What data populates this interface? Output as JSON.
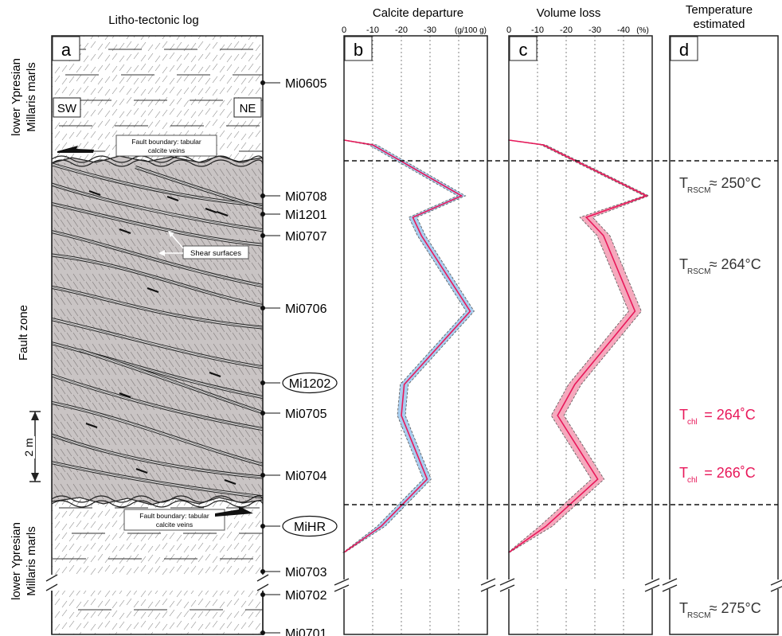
{
  "headers": {
    "log": "Litho-tectonic log",
    "calcite": "Calcite departure",
    "volume": "Volume loss",
    "temperature_line1": "Temperature",
    "temperature_line2": "estimated"
  },
  "panel_letters": [
    "a",
    "b",
    "c",
    "d"
  ],
  "log": {
    "orientation_left": "SW",
    "orientation_right": "NE",
    "unit_upper_line1": "lower Ypresian",
    "unit_upper_line2": "Millaris marls",
    "unit_lower_line1": "lower Ypresian",
    "unit_lower_line2": "Millaris marls",
    "fault_zone_label": "Fault zone",
    "scale_label": "2 m",
    "fault_boundary_top_line1": "Fault boundary: tabular",
    "fault_boundary_top_line2": "calcite veins",
    "fault_boundary_bottom_line1": "Fault boundary: tabular",
    "fault_boundary_bottom_line2": "calcite veins",
    "shear_surfaces_label": "Shear surfaces"
  },
  "samples": [
    {
      "id": "Mi0605",
      "circled": false
    },
    {
      "id": "Mi0708",
      "circled": false
    },
    {
      "id": "Mi1201",
      "circled": false
    },
    {
      "id": "Mi0707",
      "circled": false
    },
    {
      "id": "Mi0706",
      "circled": false
    },
    {
      "id": "Mi1202",
      "circled": true
    },
    {
      "id": "Mi0705",
      "circled": false
    },
    {
      "id": "Mi0704",
      "circled": false
    },
    {
      "id": "MiHR",
      "circled": true
    },
    {
      "id": "Mi0703",
      "circled": false
    },
    {
      "id": "Mi0702",
      "circled": false
    },
    {
      "id": "Mi0701",
      "circled": false
    }
  ],
  "calcite_axis": {
    "ticks": [
      "0",
      "-10",
      "-20",
      "-30"
    ],
    "unit": "(g/100 g)",
    "range": [
      0,
      -50
    ]
  },
  "volume_axis": {
    "ticks": [
      "0",
      "-10",
      "-20",
      "-30",
      "-40"
    ],
    "unit": "(%)",
    "range": [
      0,
      -50
    ]
  },
  "calcite_profile": [
    {
      "sample": "boundary-top",
      "value": 0
    },
    {
      "sample": "Mi0605-base",
      "value": -10
    },
    {
      "sample": "Mi0708",
      "value": -41
    },
    {
      "sample": "Mi1201",
      "value": -24
    },
    {
      "sample": "Mi0707",
      "value": -27
    },
    {
      "sample": "Mi0706",
      "value": -44
    },
    {
      "sample": "Mi1202",
      "value": -21
    },
    {
      "sample": "Mi0705",
      "value": -20
    },
    {
      "sample": "Mi0704",
      "value": -29
    },
    {
      "sample": "MiHR",
      "value": -13
    },
    {
      "sample": "boundary-bottom",
      "value": 0
    }
  ],
  "volume_profile": [
    {
      "sample": "boundary-top",
      "value": 0
    },
    {
      "sample": "Mi0605-base",
      "value": -12
    },
    {
      "sample": "Mi0708",
      "value": -48
    },
    {
      "sample": "Mi1201",
      "value": -27
    },
    {
      "sample": "Mi0707",
      "value": -33
    },
    {
      "sample": "Mi0706",
      "value": -44
    },
    {
      "sample": "Mi1202",
      "value": -23
    },
    {
      "sample": "Mi0705",
      "value": -17
    },
    {
      "sample": "Mi0704",
      "value": -31
    },
    {
      "sample": "MiHR",
      "value": -13
    },
    {
      "sample": "boundary-bottom",
      "value": 0
    }
  ],
  "temperatures": [
    {
      "symbol": "T",
      "subscript": "RSCM",
      "text": "≈ 250°C",
      "color": "#333333"
    },
    {
      "symbol": "T",
      "subscript": "RSCM",
      "text": "≈ 264°C",
      "color": "#333333"
    },
    {
      "symbol": "T",
      "subscript": "chl",
      "text": "= 264˚C",
      "color": "#e8185a"
    },
    {
      "symbol": "T",
      "subscript": "chl",
      "text": "= 266˚C",
      "color": "#e8185a"
    },
    {
      "symbol": "T",
      "subscript": "RSCM",
      "text": "≈ 275°C",
      "color": "#333333"
    }
  ],
  "colors": {
    "curve": "#e8185a",
    "calcite_band": "#a9cdef",
    "volume_band": "#f5a9bd",
    "fault_fill": "#c9c4c4",
    "temp_red": "#e8185a"
  }
}
